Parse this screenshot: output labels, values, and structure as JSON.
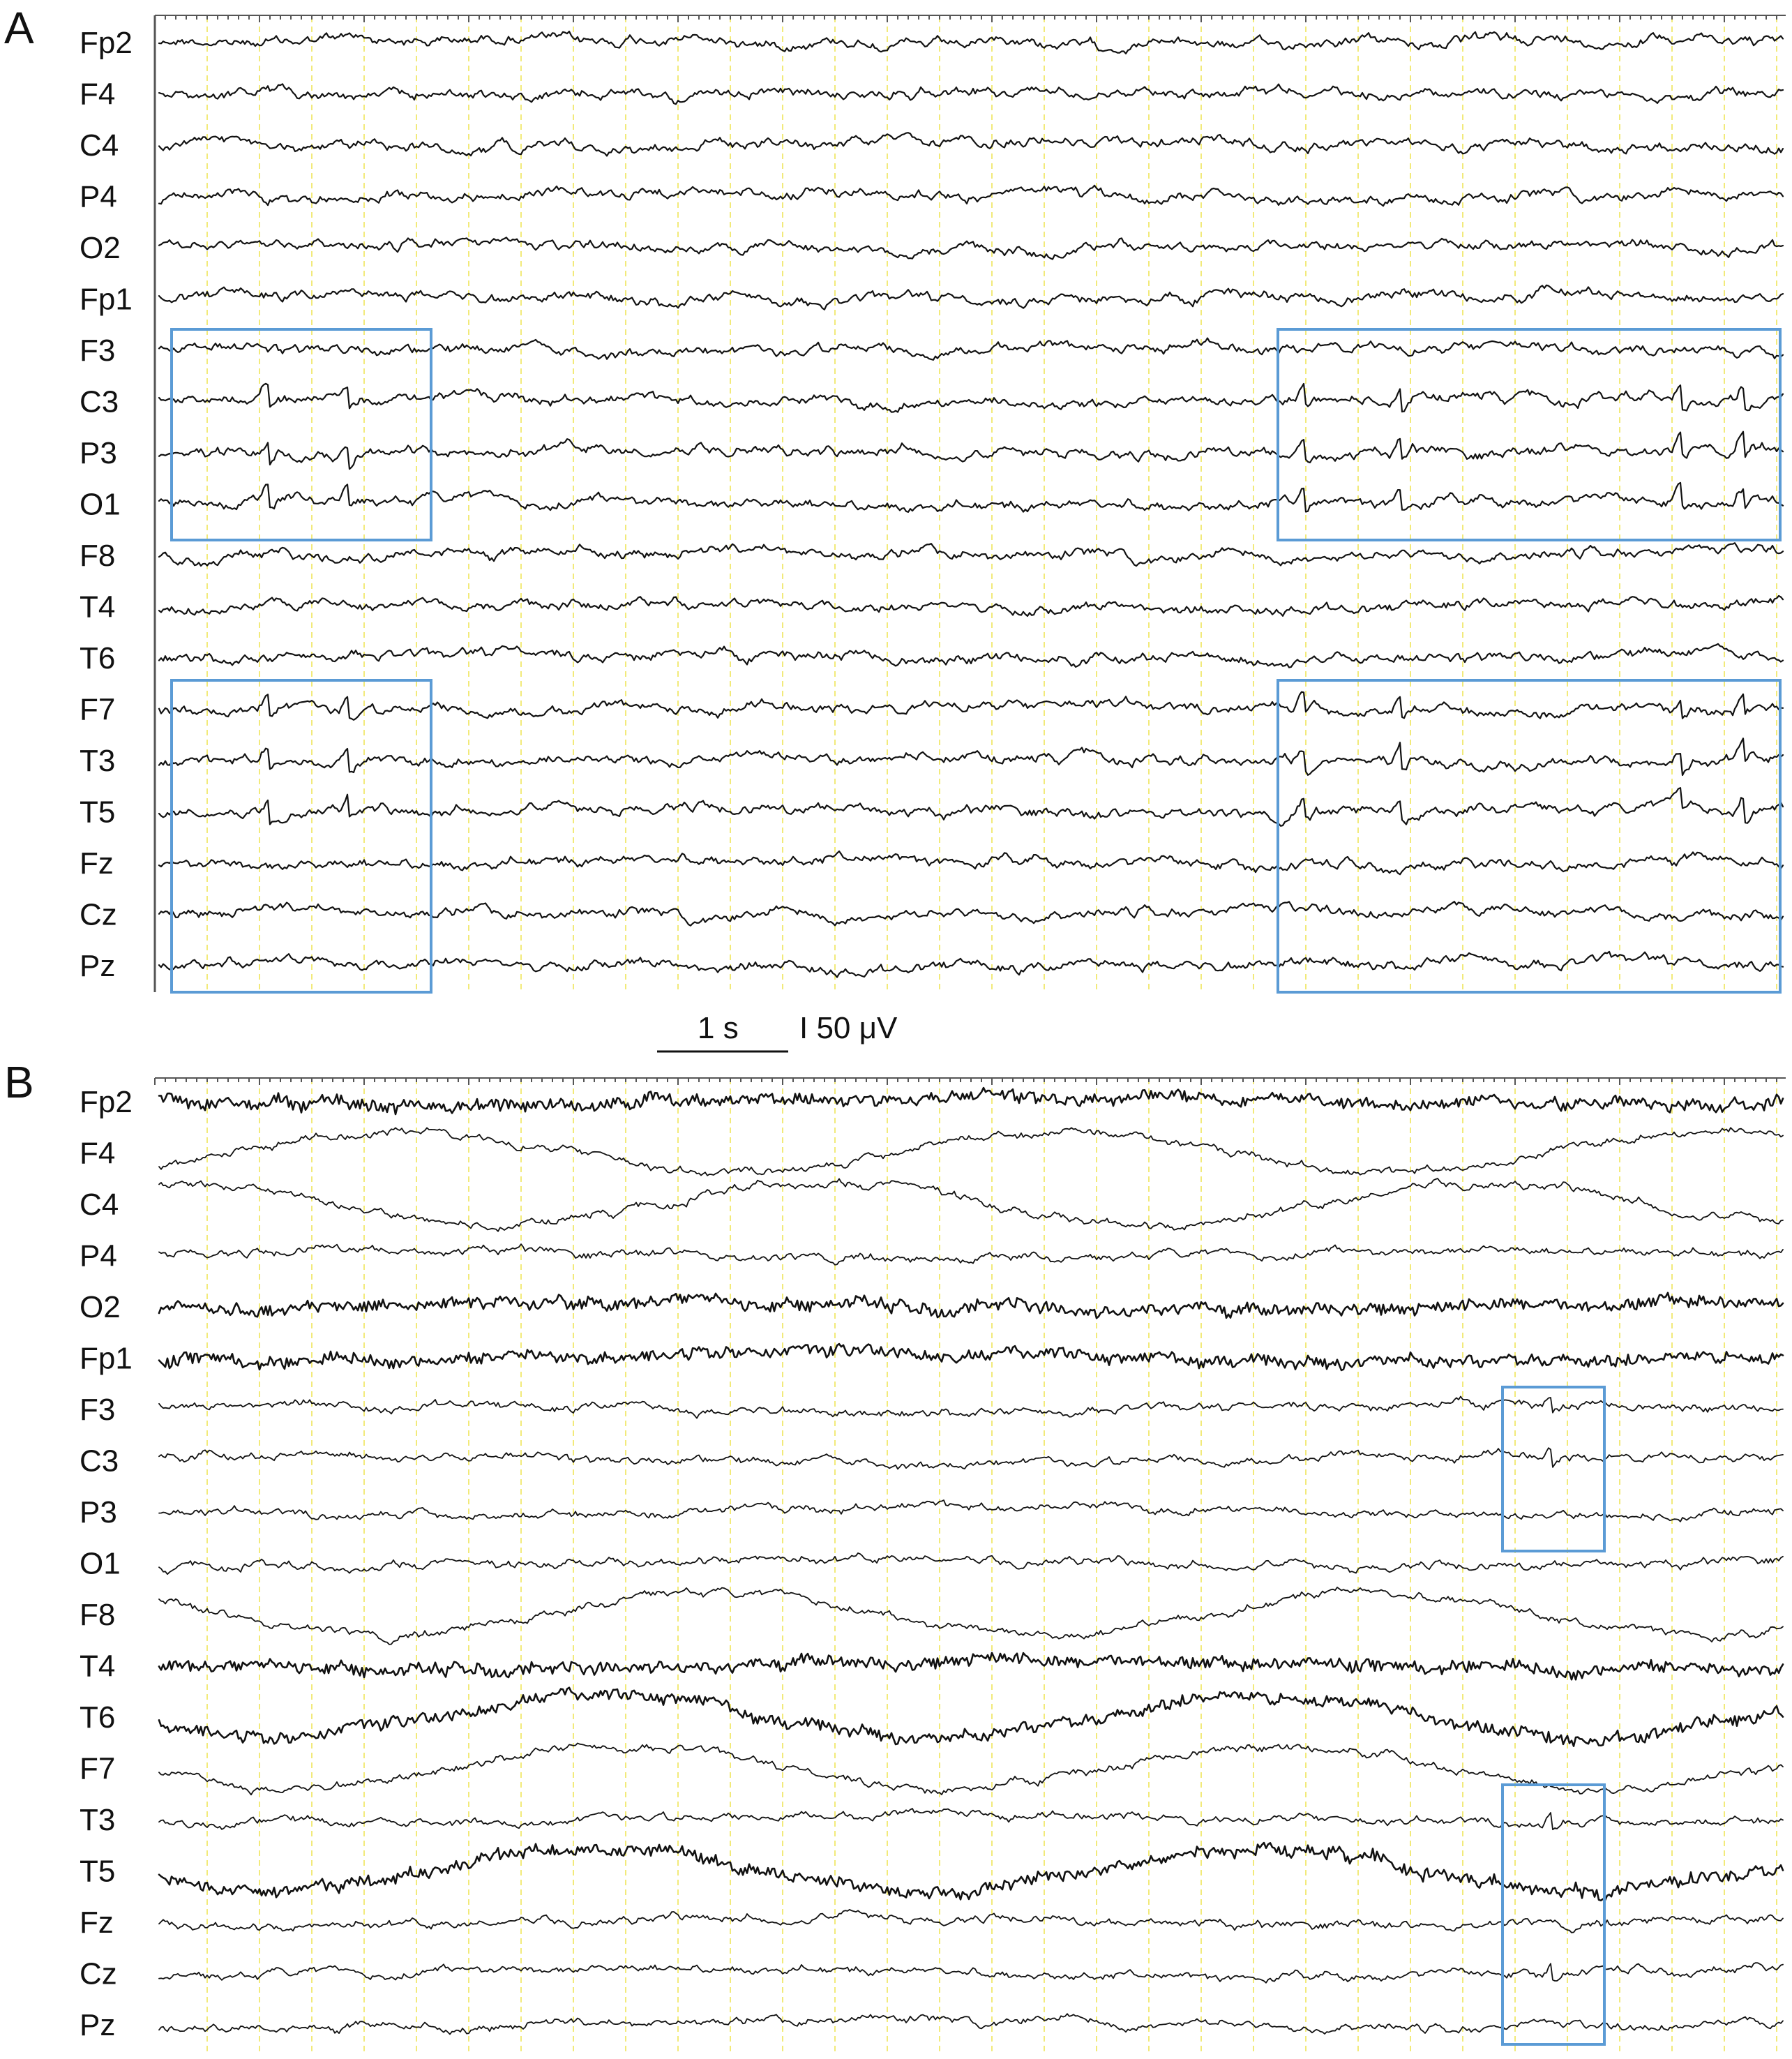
{
  "panels": [
    {
      "letter": "A",
      "channels": [
        "Fp2",
        "F4",
        "C4",
        "P4",
        "O2",
        "Fp1",
        "F3",
        "C3",
        "P3",
        "O1",
        "F8",
        "T4",
        "T6",
        "F7",
        "T3",
        "T5",
        "Fz",
        "Cz",
        "Pz"
      ]
    },
    {
      "letter": "B",
      "channels": [
        "Fp2",
        "F4",
        "C4",
        "P4",
        "O2",
        "Fp1",
        "F3",
        "C3",
        "P3",
        "O1",
        "F8",
        "T4",
        "T6",
        "F7",
        "T3",
        "T5",
        "Fz",
        "Cz",
        "Pz"
      ]
    }
  ],
  "scale_bar": {
    "time_label": "1 s",
    "amplitude_label": "I 50 μV"
  }
}
